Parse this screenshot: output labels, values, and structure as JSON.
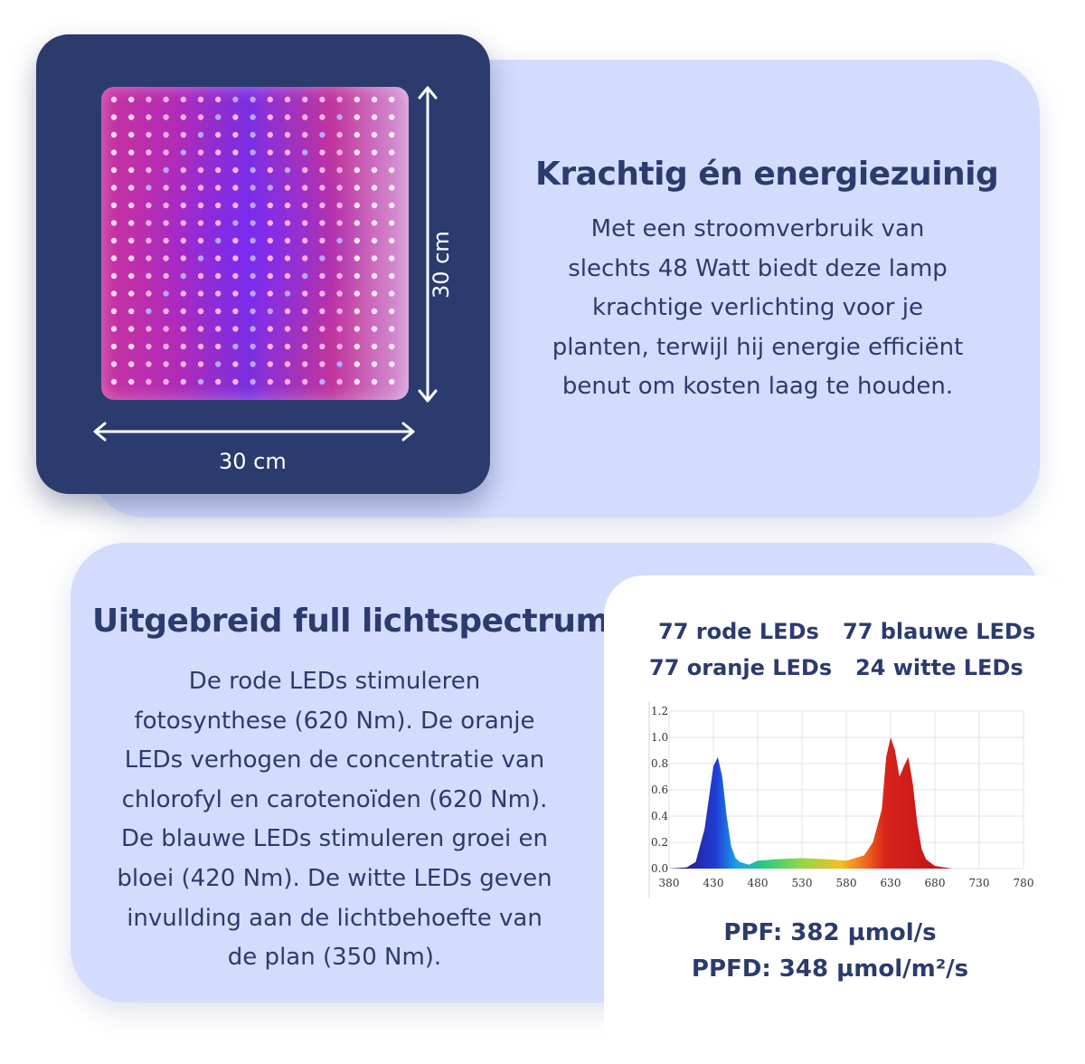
{
  "top": {
    "dimension_vertical": "30 cm",
    "dimension_horizontal": "30 cm",
    "title": "Krachtig én energiezuinig",
    "body_lines": [
      "Met een stroomverbruik van",
      "slechts 48 Watt biedt deze lamp",
      "krachtige verlichting voor je",
      "planten, terwijl hij energie efficiënt",
      "benut om kosten laag te houden."
    ]
  },
  "bottom": {
    "title": "Uitgebreid full lichtspectrum",
    "body_lines": [
      "De rode LEDs stimuleren",
      "fotosynthese (620 Nm). De oranje",
      "LEDs verhogen de concentratie van",
      "chlorofyl en carotenoïden (620 Nm).",
      "De blauwe LEDs stimuleren groei en",
      "bloei (420 Nm). De witte LEDs geven",
      "invullding aan de lichtbehoefte van",
      "de plan (350 Nm)."
    ],
    "leds": {
      "red": "77 rode LEDs",
      "blue": "77 blauwe LEDs",
      "orange": "77 oranje LEDs",
      "white": "24 witte LEDs"
    },
    "ppf": "PPF: 382 µmol/s",
    "ppfd": "PPFD: 348 µmol/m²/s"
  },
  "chart_data": {
    "type": "area",
    "title": "",
    "xlabel": "",
    "ylabel": "",
    "x_ticks": [
      380,
      430,
      480,
      530,
      580,
      630,
      680,
      730,
      780
    ],
    "y_ticks": [
      0.0,
      0.2,
      0.4,
      0.6,
      0.8,
      1.0,
      1.2
    ],
    "xlim": [
      380,
      780
    ],
    "ylim": [
      0,
      1.2
    ],
    "grid": true,
    "x": [
      380,
      400,
      410,
      420,
      430,
      435,
      440,
      445,
      450,
      455,
      460,
      470,
      480,
      500,
      530,
      560,
      580,
      600,
      610,
      620,
      625,
      630,
      635,
      640,
      645,
      650,
      655,
      660,
      665,
      670,
      680,
      700,
      730,
      780
    ],
    "values": [
      0.0,
      0.01,
      0.05,
      0.3,
      0.78,
      0.85,
      0.7,
      0.4,
      0.17,
      0.08,
      0.05,
      0.03,
      0.06,
      0.07,
      0.08,
      0.07,
      0.06,
      0.1,
      0.2,
      0.45,
      0.85,
      1.0,
      0.9,
      0.7,
      0.78,
      0.85,
      0.65,
      0.35,
      0.15,
      0.07,
      0.02,
      0.0,
      0.0,
      0.0
    ]
  },
  "colors": {
    "navy": "#2c3b6e",
    "card": "#d3dcfd",
    "text": "#2c3b6e"
  }
}
